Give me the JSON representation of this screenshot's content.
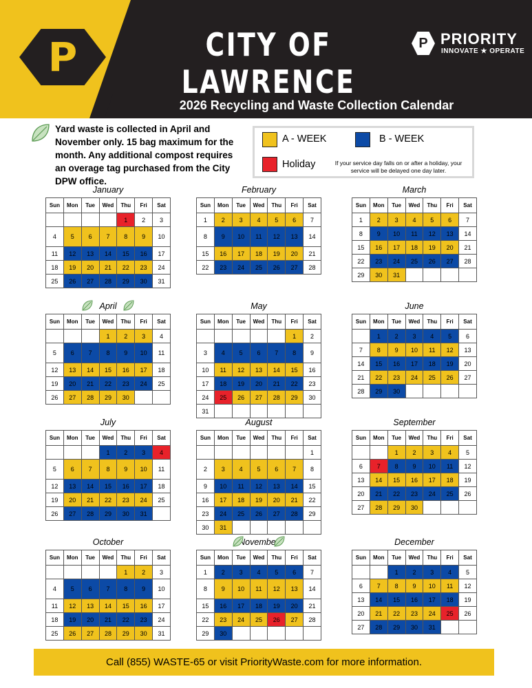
{
  "header": {
    "city_title": "CITY OF LAWRENCE",
    "logo_letter": "P",
    "brand_name": "PRIORITY",
    "brand_tagline": "INNOVATE ★ OPERATE",
    "subtitle": "2026 Recycling and Waste Collection Calendar"
  },
  "notice": {
    "yard_waste": "Yard waste is collected in April and November only. 15 bag maximum for the month. Any additional compost requires an overage tag purchased from the City DPW office."
  },
  "legend": {
    "a_week": "A - WEEK",
    "b_week": "B - WEEK",
    "holiday": "Holiday",
    "delay_note": "If your service day falls on or after a holiday, your service will be delayed one day later."
  },
  "colors": {
    "a_week": "#f0c21d",
    "b_week": "#0c4aa6",
    "holiday": "#e8222a",
    "banner": "#231f20"
  },
  "weekdays": [
    "Sun",
    "Mon",
    "Tue",
    "Wed",
    "Thu",
    "Fri",
    "Sat"
  ],
  "months": [
    {
      "name": "January",
      "start": 4,
      "days": 31,
      "leaf": false,
      "week_codes": [
        "H",
        "A",
        "B",
        "A",
        "B"
      ],
      "holidays": [
        1
      ]
    },
    {
      "name": "February",
      "start": 0,
      "days": 28,
      "leaf": false,
      "week_codes": [
        "A",
        "B",
        "A",
        "B"
      ],
      "holidays": []
    },
    {
      "name": "March",
      "start": 0,
      "days": 31,
      "leaf": false,
      "week_codes": [
        "A",
        "B",
        "A",
        "B",
        "A"
      ],
      "holidays": []
    },
    {
      "name": "April",
      "start": 3,
      "days": 30,
      "leaf": true,
      "week_codes": [
        "A",
        "B",
        "A",
        "B",
        "A"
      ],
      "holidays": []
    },
    {
      "name": "May",
      "start": 5,
      "days": 31,
      "leaf": false,
      "week_codes": [
        "A",
        "B",
        "A",
        "B",
        "A",
        "-"
      ],
      "holidays": [
        25
      ]
    },
    {
      "name": "June",
      "start": 1,
      "days": 30,
      "leaf": false,
      "week_codes": [
        "B",
        "A",
        "B",
        "A",
        "B"
      ],
      "holidays": []
    },
    {
      "name": "July",
      "start": 3,
      "days": 31,
      "leaf": false,
      "week_codes": [
        "B",
        "A",
        "B",
        "A",
        "B"
      ],
      "holidays": [
        4
      ]
    },
    {
      "name": "August",
      "start": 6,
      "days": 31,
      "leaf": false,
      "week_codes": [
        "-",
        "A",
        "B",
        "A",
        "B",
        "A"
      ],
      "holidays": []
    },
    {
      "name": "September",
      "start": 2,
      "days": 30,
      "leaf": false,
      "week_codes": [
        "A",
        "B",
        "A",
        "B",
        "A"
      ],
      "holidays": [
        7
      ]
    },
    {
      "name": "October",
      "start": 4,
      "days": 31,
      "leaf": false,
      "week_codes": [
        "A",
        "B",
        "A",
        "B",
        "A"
      ],
      "holidays": []
    },
    {
      "name": "November",
      "start": 0,
      "days": 30,
      "leaf": true,
      "week_codes": [
        "B",
        "A",
        "B",
        "A",
        "B"
      ],
      "holidays": [
        26
      ]
    },
    {
      "name": "December",
      "start": 2,
      "days": 31,
      "leaf": false,
      "week_codes": [
        "B",
        "A",
        "B",
        "A",
        "B"
      ],
      "holidays": [
        25
      ]
    }
  ],
  "footer": {
    "text": "Call (855) WASTE-65 or visit PriorityWaste.com for more information."
  }
}
